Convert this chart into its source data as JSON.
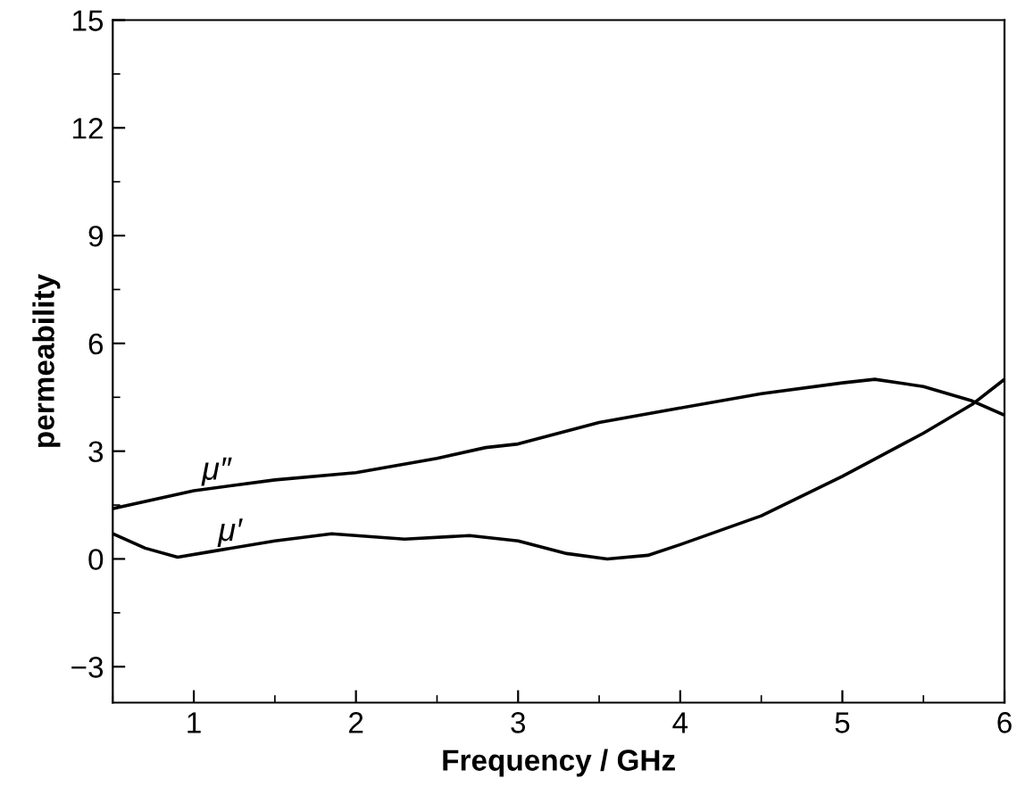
{
  "chart_data": {
    "type": "line",
    "xlabel": "Frequency / GHz",
    "ylabel": "permeability",
    "xlim": [
      0.5,
      6
    ],
    "ylim": [
      -4,
      15
    ],
    "xticks": [
      1,
      2,
      3,
      4,
      5,
      6
    ],
    "yticks": [
      -3,
      0,
      3,
      6,
      9,
      12,
      15
    ],
    "grid": false,
    "legend": false,
    "marker": "none",
    "line_style": "solid",
    "series": [
      {
        "name": "μ″",
        "color": "#000000",
        "x": [
          0.5,
          1,
          1.5,
          2,
          2.5,
          2.8,
          3,
          3.5,
          4,
          4.5,
          5,
          5.2,
          5.5,
          5.8,
          6
        ],
        "values": [
          1.4,
          1.9,
          2.2,
          2.4,
          2.8,
          3.1,
          3.2,
          3.8,
          4.2,
          4.6,
          4.9,
          5.0,
          4.8,
          4.4,
          4.0
        ]
      },
      {
        "name": "μ′",
        "color": "#000000",
        "x": [
          0.5,
          0.7,
          0.9,
          1.1,
          1.5,
          1.85,
          2.3,
          2.7,
          3,
          3.3,
          3.55,
          3.8,
          4,
          4.5,
          5,
          5.5,
          5.8,
          6
        ],
        "values": [
          0.7,
          0.3,
          0.05,
          0.2,
          0.5,
          0.7,
          0.55,
          0.65,
          0.5,
          0.15,
          0.0,
          0.1,
          0.4,
          1.2,
          2.3,
          3.5,
          4.3,
          5.0
        ]
      }
    ]
  }
}
